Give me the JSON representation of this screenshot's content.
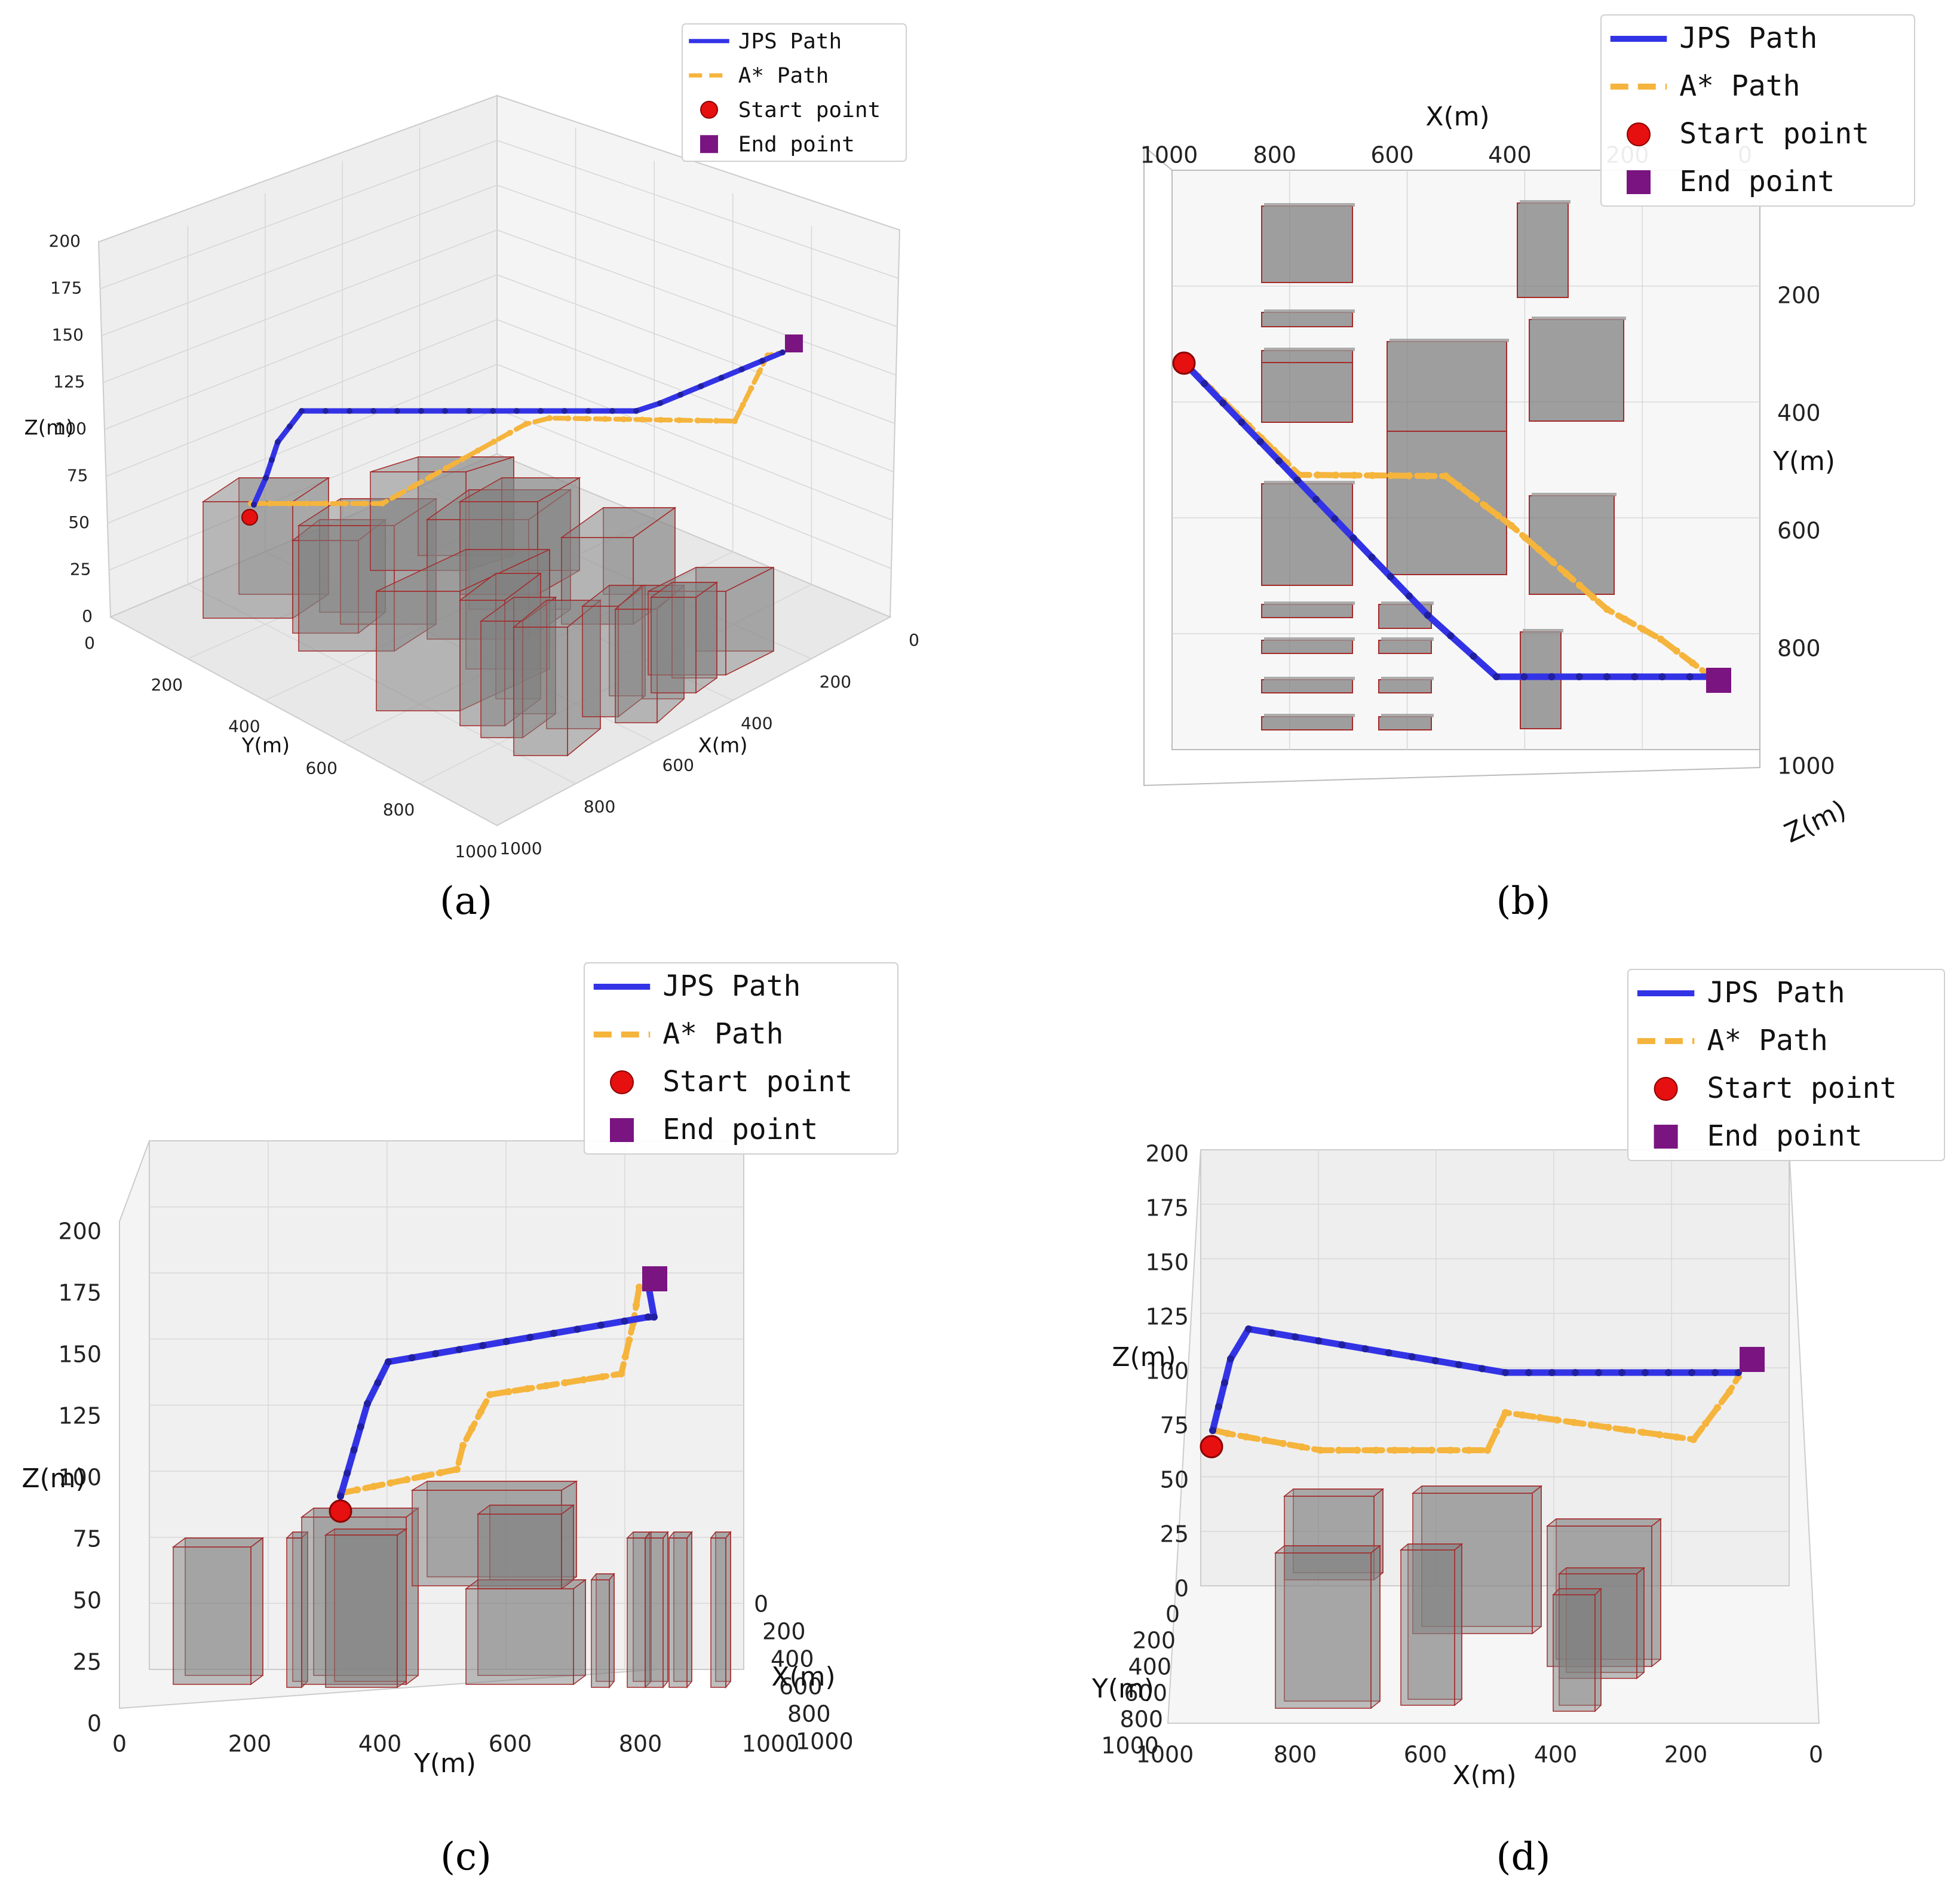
{
  "chart_data": [
    {
      "panel": "(a)",
      "type": "line",
      "view": "3d-perspective",
      "xlabel": "X(m)",
      "ylabel": "Y(m)",
      "zlabel": "Z(m)",
      "xticks": [
        "0",
        "200",
        "400",
        "600",
        "800",
        "1000"
      ],
      "yticks": [
        "0",
        "200",
        "400",
        "600",
        "800",
        "1000"
      ],
      "zticks": [
        "0",
        "25",
        "50",
        "75",
        "100",
        "125",
        "150",
        "175",
        "200"
      ],
      "xlim": [
        0,
        1000
      ],
      "ylim": [
        0,
        1000
      ],
      "zlim": [
        0,
        200
      ],
      "legend": {
        "placement": "top-right",
        "entries": [
          "JPS Path",
          "A* Path",
          "Start point",
          "End point"
        ]
      }
    },
    {
      "panel": "(b)",
      "type": "line",
      "view": "top-down",
      "xlabel": "X(m)",
      "ylabel": "Y(m)",
      "zlabel": "Z(m)",
      "xticks": [
        "1000",
        "800",
        "600",
        "400",
        "200",
        "0"
      ],
      "yticks": [
        "200",
        "400",
        "600",
        "800",
        "1000"
      ],
      "xlim": [
        1000,
        0
      ],
      "ylim": [
        0,
        1000
      ],
      "legend": {
        "placement": "top-right",
        "entries": [
          "JPS Path",
          "A* Path",
          "Start point",
          "End point"
        ]
      }
    },
    {
      "panel": "(c)",
      "type": "line",
      "view": "side-Y-Z",
      "xlabel": "Y(m)",
      "ylabel": "Z(m)",
      "depthlabel": "X(m)",
      "xticks": [
        "0",
        "200",
        "400",
        "600",
        "800",
        "1000"
      ],
      "zticks": [
        "0",
        "25",
        "50",
        "75",
        "100",
        "125",
        "150",
        "175",
        "200"
      ],
      "depthticks": [
        "0",
        "200",
        "400",
        "600",
        "800",
        "1000"
      ],
      "xlim": [
        0,
        1000
      ],
      "zlim": [
        0,
        200
      ],
      "legend": {
        "placement": "top-right",
        "entries": [
          "JPS Path",
          "A* Path",
          "Start point",
          "End point"
        ]
      }
    },
    {
      "panel": "(d)",
      "type": "line",
      "view": "side-X-Z",
      "xlabel": "X(m)",
      "ylabel": "Z(m)",
      "depthlabel": "Y(m)",
      "xticks": [
        "1000",
        "800",
        "600",
        "400",
        "200",
        "0"
      ],
      "zticks": [
        "0",
        "25",
        "50",
        "75",
        "100",
        "125",
        "150",
        "175",
        "200"
      ],
      "depthticks": [
        "0",
        "200",
        "400",
        "600",
        "800",
        "1000"
      ],
      "xlim": [
        1000,
        0
      ],
      "zlim": [
        0,
        200
      ],
      "legend": {
        "placement": "top-right",
        "entries": [
          "JPS Path",
          "A* Path",
          "Start point",
          "End point"
        ]
      }
    }
  ],
  "colors": {
    "jps": "#3333e6",
    "astar": "#f5b43c",
    "start": "#e61010",
    "end": "#7a1481",
    "obstacle_fill": "#808080",
    "obstacle_edge": "#a52a2a"
  },
  "legend_labels": {
    "jps": "JPS Path",
    "astar": "A* Path",
    "start": "Start point",
    "end": "End point"
  }
}
